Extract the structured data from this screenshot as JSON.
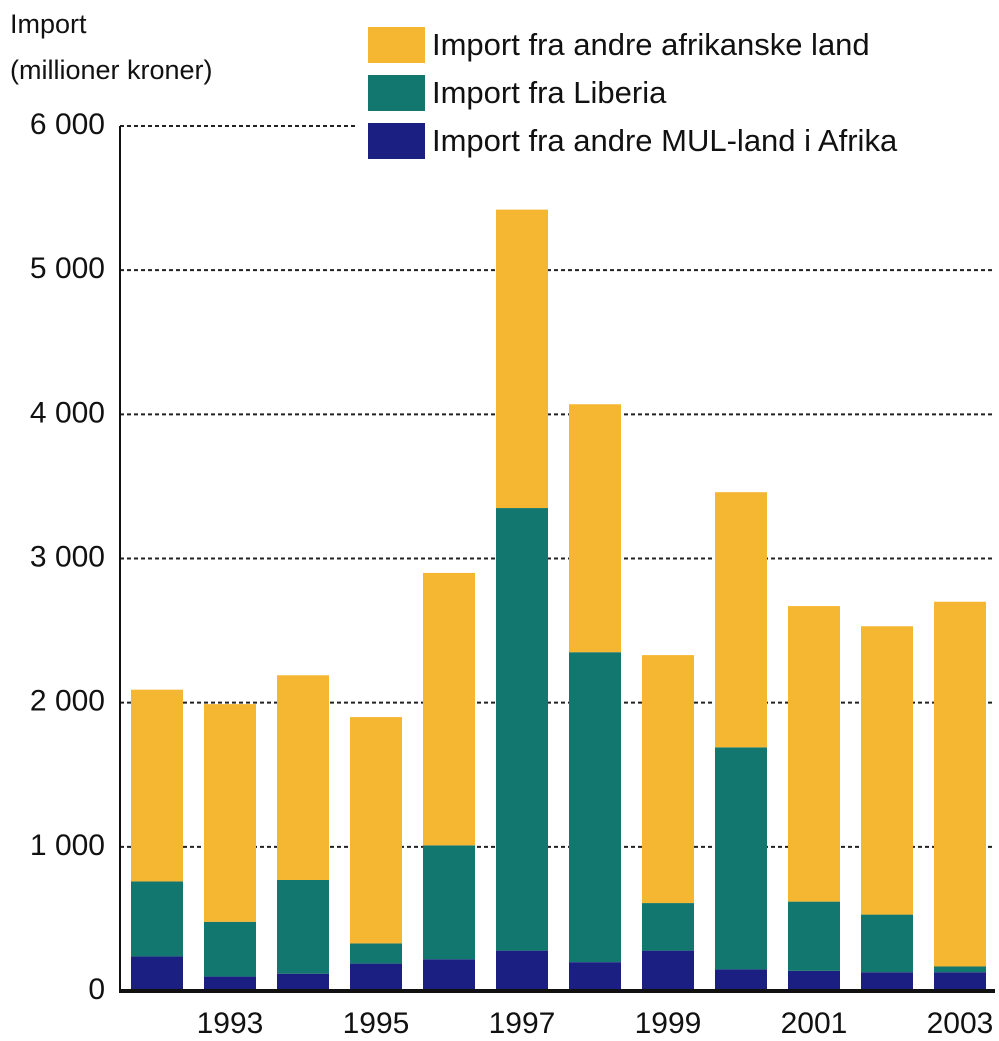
{
  "chart_data": {
    "type": "stacked_bar",
    "y_label": [
      "Import",
      "(millioner kroner)"
    ],
    "categories": [
      null,
      "1993",
      null,
      "1995",
      null,
      "1997",
      null,
      "1999",
      null,
      "2001",
      null,
      "2003"
    ],
    "series": [
      {
        "name": "Import fra andre MUL-land i Afrika",
        "color": "#1c1f82",
        "values": [
          240,
          100,
          120,
          190,
          220,
          280,
          200,
          280,
          150,
          140,
          130,
          130
        ]
      },
      {
        "name": "Import fra Liberia",
        "color": "#12776f",
        "values": [
          520,
          380,
          650,
          140,
          790,
          3070,
          2150,
          330,
          1540,
          480,
          400,
          40
        ]
      },
      {
        "name": "Import fra andre afrikanske land",
        "color": "#f5b731",
        "values": [
          1330,
          1510,
          1420,
          1570,
          1890,
          2070,
          1720,
          1720,
          1770,
          2050,
          2000,
          2530
        ]
      }
    ],
    "legend_order": [
      2,
      1,
      0
    ],
    "ylim": [
      0,
      6000
    ],
    "yticks": [
      0,
      {
        "value": 1000,
        "label": "1 000"
      },
      {
        "value": 2000,
        "label": "2 000"
      },
      {
        "value": 3000,
        "label": "3 000"
      },
      {
        "value": 4000,
        "label": "4 000"
      },
      {
        "value": 5000,
        "label": "5 000"
      },
      {
        "value": 6000,
        "label": "6 000"
      }
    ],
    "grid": true
  }
}
